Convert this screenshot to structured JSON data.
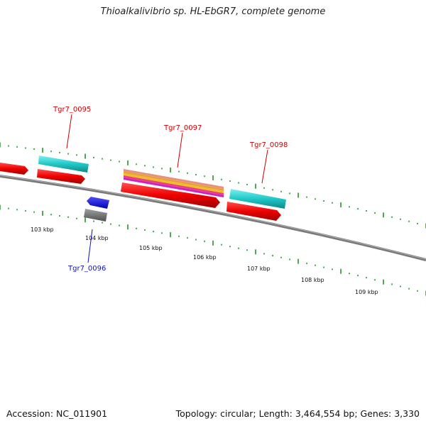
{
  "title": "Thioalkalivibrio sp. HL-EbGR7, complete genome",
  "footer": {
    "accession": "Accession: NC_011901",
    "topology": "Topology: circular; Length: 3,464,554 bp; Genes: 3,330"
  },
  "colors": {
    "backbone": "#808080",
    "ticks": "#1a8a1a",
    "gene_red": "#e01010",
    "gene_cyan": "#20c8c8",
    "gene_blue": "#1010e0",
    "gene_grey": "#707070",
    "label_red": "#c00000",
    "label_blue": "#1010c0"
  },
  "scale_labels": [
    "103 kbp",
    "104 kbp",
    "105 kbp",
    "106 kbp",
    "107 kbp",
    "108 kbp",
    "109 kbp"
  ],
  "gene_labels": {
    "tgr7_0095": "Tgr7_0095",
    "tgr7_0096": "Tgr7_0096",
    "tgr7_0097": "Tgr7_0097",
    "tgr7_0098": "Tgr7_0098"
  }
}
